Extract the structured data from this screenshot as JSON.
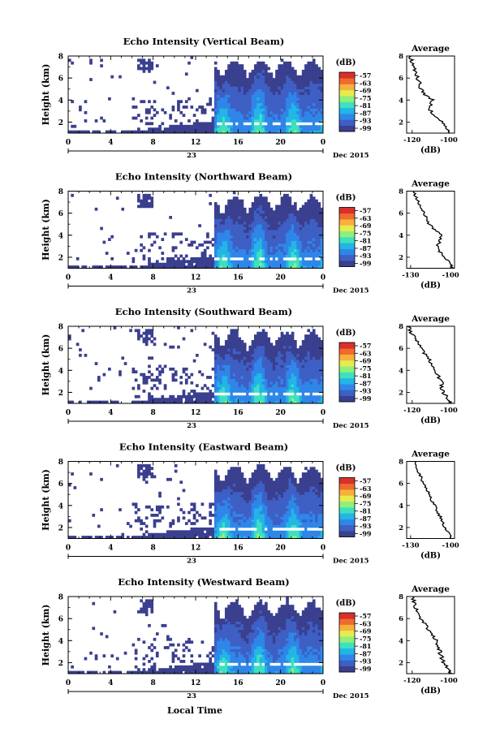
{
  "figure": {
    "xaxis_title": "Local Time",
    "colorbar_unit": "(dB)",
    "colorbar_ticks": [
      "-57",
      "-63",
      "-69",
      "-75",
      "-81",
      "-87",
      "-93",
      "-99"
    ],
    "colorbar_colors": [
      "#3a3f8e",
      "#3e5fc4",
      "#2f86e8",
      "#22b5e6",
      "#3ee0c0",
      "#8ef07a",
      "#e6ec4e",
      "#f7b13a",
      "#f06a2e",
      "#d9302a"
    ],
    "no_echo_color": "#ffffff"
  },
  "chart_data": [
    {
      "type": "heatmap",
      "title": "Echo Intensity (Vertical Beam)",
      "ylabel": "Height (km)",
      "x_ticks": [
        "0",
        "4",
        "8",
        "12",
        "16",
        "20",
        "0"
      ],
      "x_range_hours": [
        0,
        24
      ],
      "date_center": "23",
      "date_right": "Dec 2015",
      "y_ticks": [
        2,
        4,
        6,
        8
      ],
      "y_range_km": [
        1,
        8
      ],
      "zlim_db": [
        -99,
        -57
      ],
      "profile": {
        "title": "Average",
        "xlabel": "(dB)",
        "x_ticks": [
          -120,
          -100
        ],
        "y_ticks": [
          2,
          4,
          6,
          8
        ],
        "heights_km": [
          1.0,
          1.5,
          2.0,
          2.5,
          3.0,
          3.5,
          4.0,
          4.5,
          5.0,
          5.5,
          6.0,
          6.5,
          7.0,
          7.5,
          8.0
        ],
        "values_db": [
          -99,
          -101,
          -104,
          -107,
          -110,
          -110,
          -109,
          -113,
          -115,
          -116,
          -117,
          -118,
          -119,
          -120,
          -121
        ]
      }
    },
    {
      "type": "heatmap",
      "title": "Echo Intensity (Northward Beam)",
      "ylabel": "Height (km)",
      "x_ticks": [
        "0",
        "4",
        "8",
        "12",
        "16",
        "20",
        "0"
      ],
      "x_range_hours": [
        0,
        24
      ],
      "date_center": "23",
      "date_right": "Dec 2015",
      "y_ticks": [
        2,
        4,
        6,
        8
      ],
      "y_range_km": [
        1,
        8
      ],
      "zlim_db": [
        -99,
        -57
      ],
      "profile": {
        "title": "Average",
        "xlabel": "(dB)",
        "x_ticks": [
          -130,
          -100
        ],
        "y_ticks": [
          2,
          4,
          6,
          8
        ],
        "heights_km": [
          1.0,
          1.5,
          2.0,
          2.5,
          3.0,
          3.5,
          4.0,
          4.5,
          5.0,
          5.5,
          6.0,
          6.5,
          7.0,
          7.5,
          8.0
        ],
        "values_db": [
          -98,
          -101,
          -104,
          -108,
          -110,
          -108,
          -107,
          -112,
          -116,
          -118,
          -120,
          -122,
          -124,
          -126,
          -128
        ]
      }
    },
    {
      "type": "heatmap",
      "title": "Echo Intensity (Southward Beam)",
      "ylabel": "Height (km)",
      "x_ticks": [
        "0",
        "4",
        "8",
        "12",
        "16",
        "20",
        "0"
      ],
      "x_range_hours": [
        0,
        24
      ],
      "date_center": "23",
      "date_right": "Dec 2015",
      "y_ticks": [
        2,
        4,
        6,
        8
      ],
      "y_range_km": [
        1,
        8
      ],
      "zlim_db": [
        -99,
        -57
      ],
      "profile": {
        "title": "Average",
        "xlabel": "(dB)",
        "x_ticks": [
          -120,
          -100
        ],
        "y_ticks": [
          2,
          4,
          6,
          8
        ],
        "heights_km": [
          1.0,
          1.5,
          2.0,
          2.5,
          3.0,
          3.5,
          4.0,
          4.5,
          5.0,
          5.5,
          6.0,
          6.5,
          7.0,
          7.5,
          8.0
        ],
        "values_db": [
          -99,
          -101,
          -103,
          -104,
          -104,
          -106,
          -107,
          -109,
          -111,
          -113,
          -115,
          -117,
          -119,
          -121,
          -122
        ]
      }
    },
    {
      "type": "heatmap",
      "title": "Echo Intensity (Eastward Beam)",
      "ylabel": "Height (km)",
      "x_ticks": [
        "0",
        "4",
        "8",
        "12",
        "16",
        "20",
        "0"
      ],
      "x_range_hours": [
        0,
        24
      ],
      "date_center": "23",
      "date_right": "Dec 2015",
      "y_ticks": [
        2,
        4,
        6,
        8
      ],
      "y_range_km": [
        1,
        8
      ],
      "zlim_db": [
        -99,
        -57
      ],
      "profile": {
        "title": "Average",
        "xlabel": "(dB)",
        "x_ticks": [
          -130,
          -100
        ],
        "y_ticks": [
          2,
          4,
          6,
          8
        ],
        "heights_km": [
          1.0,
          1.5,
          2.0,
          2.5,
          3.0,
          3.5,
          4.0,
          4.5,
          5.0,
          5.5,
          6.0,
          6.5,
          7.0,
          7.5,
          8.0
        ],
        "values_db": [
          -99,
          -101,
          -104,
          -106,
          -108,
          -110,
          -112,
          -114,
          -116,
          -118,
          -120,
          -122,
          -124,
          -126,
          -127
        ]
      }
    },
    {
      "type": "heatmap",
      "title": "Echo Intensity (Westward Beam)",
      "ylabel": "Height (km)",
      "x_ticks": [
        "0",
        "4",
        "8",
        "12",
        "16",
        "20",
        "0"
      ],
      "x_range_hours": [
        0,
        24
      ],
      "date_center": "23",
      "date_right": "Dec 2015",
      "y_ticks": [
        2,
        4,
        6,
        8
      ],
      "y_range_km": [
        1,
        8
      ],
      "zlim_db": [
        -99,
        -57
      ],
      "profile": {
        "title": "Average",
        "xlabel": "(dB)",
        "x_ticks": [
          -120,
          -100
        ],
        "y_ticks": [
          2,
          4,
          6,
          8
        ],
        "heights_km": [
          1.0,
          1.5,
          2.0,
          2.5,
          3.0,
          3.5,
          4.0,
          4.5,
          5.0,
          5.5,
          6.0,
          6.5,
          7.0,
          7.5,
          8.0
        ],
        "values_db": [
          -99,
          -101,
          -103,
          -104,
          -105,
          -106,
          -107,
          -109,
          -111,
          -113,
          -115,
          -117,
          -118,
          -119,
          -120
        ]
      }
    }
  ]
}
